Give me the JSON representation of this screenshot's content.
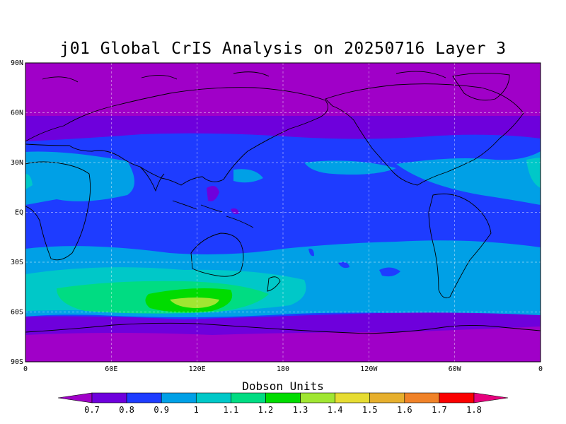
{
  "title": "j01 Global CrIS Analysis on 20250716 Layer 3",
  "map": {
    "lat_ticks": [
      "90N",
      "60N",
      "30N",
      "EQ",
      "30S",
      "60S",
      "90S"
    ],
    "lon_ticks": [
      "0",
      "60E",
      "120E",
      "180",
      "120W",
      "60W",
      "0"
    ],
    "grid": true
  },
  "colorbar": {
    "title": "Dobson Units",
    "labels": [
      "0.7",
      "0.8",
      "0.9",
      "1",
      "1.1",
      "1.2",
      "1.3",
      "1.4",
      "1.5",
      "1.6",
      "1.7",
      "1.8"
    ],
    "colors": [
      "#a000c8",
      "#6e00dc",
      "#1e3cff",
      "#00a0e6",
      "#00c8c8",
      "#00dc82",
      "#00dc00",
      "#a0e632",
      "#e6dc32",
      "#e6af2d",
      "#f08228",
      "#fa0000",
      "#e6007d"
    ]
  },
  "colors": {
    "land_outline": "#000000",
    "grid_line": "#ffffff"
  }
}
